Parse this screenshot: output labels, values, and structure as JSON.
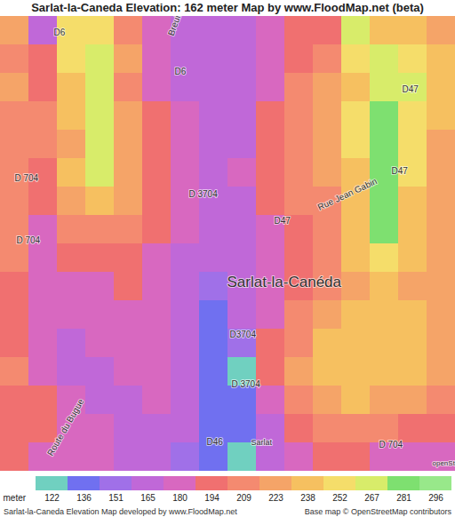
{
  "chart_data": {
    "type": "heatmap",
    "title": "Sarlat-la-Caneda Elevation: 162 meter Map by www.FloodMap.net (beta)",
    "tick_labels": false,
    "z": [
      [
        230,
        175,
        260,
        265,
        215,
        185,
        175,
        170,
        175,
        180,
        200,
        205,
        270,
        250,
        240,
        235
      ],
      [
        210,
        200,
        265,
        270,
        225,
        190,
        175,
        170,
        172,
        180,
        205,
        215,
        265,
        280,
        255,
        240
      ],
      [
        225,
        205,
        250,
        275,
        220,
        190,
        178,
        172,
        172,
        185,
        210,
        230,
        250,
        280,
        270,
        245
      ],
      [
        220,
        215,
        240,
        280,
        225,
        195,
        180,
        172,
        175,
        195,
        215,
        230,
        260,
        285,
        265,
        240
      ],
      [
        215,
        210,
        235,
        275,
        230,
        200,
        185,
        173,
        178,
        200,
        210,
        225,
        255,
        285,
        260,
        235
      ],
      [
        220,
        200,
        240,
        270,
        230,
        205,
        188,
        175,
        180,
        200,
        215,
        230,
        250,
        285,
        255,
        230
      ],
      [
        215,
        195,
        225,
        240,
        225,
        200,
        185,
        172,
        178,
        195,
        210,
        220,
        250,
        285,
        250,
        225
      ],
      [
        220,
        190,
        210,
        220,
        215,
        195,
        180,
        170,
        175,
        190,
        205,
        215,
        245,
        285,
        245,
        225
      ],
      [
        210,
        185,
        200,
        205,
        200,
        190,
        178,
        165,
        170,
        185,
        200,
        210,
        240,
        260,
        240,
        225
      ],
      [
        195,
        180,
        185,
        190,
        195,
        185,
        175,
        160,
        165,
        185,
        200,
        215,
        235,
        240,
        235,
        225
      ],
      [
        200,
        180,
        180,
        185,
        190,
        185,
        178,
        150,
        165,
        190,
        210,
        230,
        245,
        245,
        240,
        230
      ],
      [
        205,
        185,
        175,
        180,
        185,
        185,
        175,
        148,
        160,
        195,
        220,
        240,
        250,
        250,
        240,
        235
      ],
      [
        210,
        190,
        178,
        178,
        180,
        185,
        175,
        145,
        135,
        195,
        225,
        245,
        250,
        245,
        240,
        230
      ],
      [
        205,
        195,
        180,
        178,
        178,
        180,
        172,
        148,
        150,
        190,
        215,
        230,
        240,
        235,
        225,
        215
      ],
      [
        200,
        195,
        185,
        180,
        175,
        172,
        165,
        145,
        150,
        175,
        200,
        210,
        215,
        210,
        200,
        195
      ],
      [
        195,
        190,
        185,
        180,
        175,
        168,
        160,
        140,
        135,
        170,
        185,
        195,
        200,
        190,
        185,
        180
      ]
    ],
    "colorbar": {
      "label": "meter",
      "ticks": [
        122,
        136,
        151,
        165,
        180,
        194,
        209,
        223,
        238,
        252,
        267,
        281,
        296
      ],
      "colors": [
        "#70d0c0",
        "#7070f0",
        "#a070e8",
        "#c068d8",
        "#d868c0",
        "#f07070",
        "#f48a70",
        "#f5a468",
        "#f6c060",
        "#f5dd6a",
        "#d8ec6a",
        "#7ee070",
        "#98e88a"
      ]
    },
    "annotations": [
      "Sarlat-la-Canéda",
      "D6",
      "D6",
      "Breuil",
      "D 704",
      "D 704",
      "D 3704",
      "D47",
      "D47",
      "D47",
      "Rue Jean Gabin",
      "D3704",
      "D 3704",
      "D46",
      "Sarlat",
      "Route du Bugue",
      "D 704",
      "openStreetMap"
    ],
    "caption": "Sarlat-la-Caneda Elevation Map developed by www.FloodMap.net",
    "credit": "Base map © OpenStreetMap contributors"
  }
}
